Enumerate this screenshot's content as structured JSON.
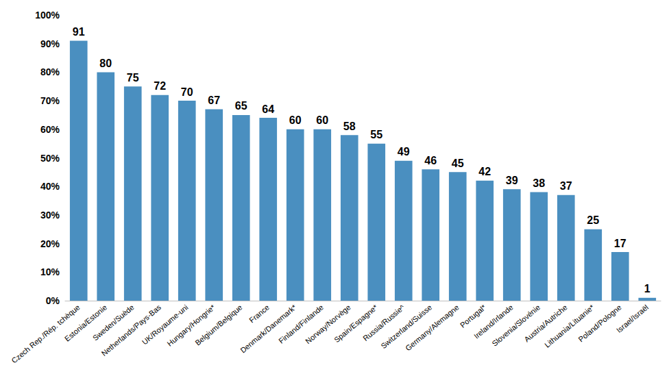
{
  "chart_data": {
    "type": "bar",
    "categories": [
      "Czech Rep./Rép. tchèque",
      "Estonia/Estonie",
      "Sweden/Suède",
      "Netherlands/Pays-Bas",
      "UK/Royaume-uni",
      "Hungary/Hongrie*",
      "Belgium/Belgique",
      "France",
      "Denmark/Danemark*",
      "Finland/Finlande",
      "Norway/Norvège",
      "Spain/Espagne*",
      "Russia/Russie^",
      "Switzerland/Suisse",
      "Germany/Alemagne",
      "Portugal*",
      "Ireland/Irlande",
      "Slovenia/Slovénie",
      "Austria/Autriche",
      "Lithuania/Lituanie*",
      "Poland/Pologne",
      "Israel/Israël"
    ],
    "values": [
      91,
      80,
      75,
      72,
      70,
      67,
      65,
      64,
      60,
      60,
      58,
      55,
      49,
      46,
      45,
      42,
      39,
      38,
      37,
      25,
      17,
      1
    ],
    "color": "#4a8fc0",
    "ylim": [
      0,
      100
    ],
    "yticks": [
      {
        "value": 0,
        "label": "0%"
      },
      {
        "value": 10,
        "label": "10%"
      },
      {
        "value": 20,
        "label": "20%"
      },
      {
        "value": 30,
        "label": "30%"
      },
      {
        "value": 40,
        "label": "40%"
      },
      {
        "value": 50,
        "label": "50%"
      },
      {
        "value": 60,
        "label": "60%"
      },
      {
        "value": 70,
        "label": "70%"
      },
      {
        "value": 80,
        "label": "80%"
      },
      {
        "value": 90,
        "label": "90%"
      },
      {
        "value": 100,
        "label": "100%"
      }
    ],
    "data_labels": true,
    "grid": false
  }
}
